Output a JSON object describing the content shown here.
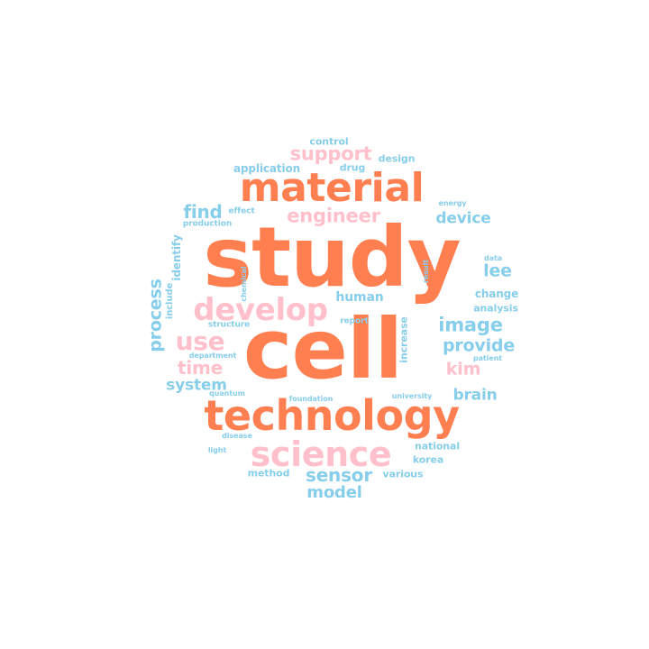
{
  "colors": {
    "orange": "#FF7F50",
    "pink": "#FFC0CB",
    "blue": "#87CEEB"
  },
  "words": [
    {
      "text": "study",
      "color": "orange"
    },
    {
      "text": "cell",
      "color": "orange"
    },
    {
      "text": "technology",
      "color": "orange"
    },
    {
      "text": "material",
      "color": "orange"
    },
    {
      "text": "science",
      "color": "pink"
    },
    {
      "text": "develop",
      "color": "pink"
    },
    {
      "text": "engineer",
      "color": "pink"
    },
    {
      "text": "support",
      "color": "pink"
    },
    {
      "text": "use",
      "color": "pink"
    },
    {
      "text": "time",
      "color": "pink"
    },
    {
      "text": "kim",
      "color": "pink"
    },
    {
      "text": "sensor",
      "color": "blue"
    },
    {
      "text": "model",
      "color": "blue"
    },
    {
      "text": "image",
      "color": "blue"
    },
    {
      "text": "provide",
      "color": "blue"
    },
    {
      "text": "brain",
      "color": "blue"
    },
    {
      "text": "device",
      "color": "blue"
    },
    {
      "text": "human",
      "color": "blue"
    },
    {
      "text": "find",
      "color": "blue"
    },
    {
      "text": "system",
      "color": "blue"
    },
    {
      "text": "lee",
      "color": "blue"
    },
    {
      "text": "process",
      "color": "blue"
    },
    {
      "text": "change",
      "color": "blue"
    },
    {
      "text": "analysis",
      "color": "blue"
    },
    {
      "text": "application",
      "color": "blue"
    },
    {
      "text": "control",
      "color": "blue"
    },
    {
      "text": "drug",
      "color": "blue"
    },
    {
      "text": "design",
      "color": "blue"
    },
    {
      "text": "effect",
      "color": "blue"
    },
    {
      "text": "production",
      "color": "blue"
    },
    {
      "text": "identify",
      "color": "blue"
    },
    {
      "text": "include",
      "color": "blue"
    },
    {
      "text": "structure",
      "color": "blue"
    },
    {
      "text": "chemical",
      "color": "blue"
    },
    {
      "text": "report",
      "color": "blue"
    },
    {
      "text": "increase",
      "color": "blue"
    },
    {
      "text": "result",
      "color": "blue"
    },
    {
      "text": "energy",
      "color": "blue"
    },
    {
      "text": "data",
      "color": "blue"
    },
    {
      "text": "patient",
      "color": "blue"
    },
    {
      "text": "department",
      "color": "blue"
    },
    {
      "text": "quantum",
      "color": "blue"
    },
    {
      "text": "foundation",
      "color": "blue"
    },
    {
      "text": "university",
      "color": "blue"
    },
    {
      "text": "disease",
      "color": "blue"
    },
    {
      "text": "light",
      "color": "blue"
    },
    {
      "text": "national",
      "color": "blue"
    },
    {
      "text": "korea",
      "color": "blue"
    },
    {
      "text": "method",
      "color": "blue"
    },
    {
      "text": "various",
      "color": "blue"
    }
  ]
}
